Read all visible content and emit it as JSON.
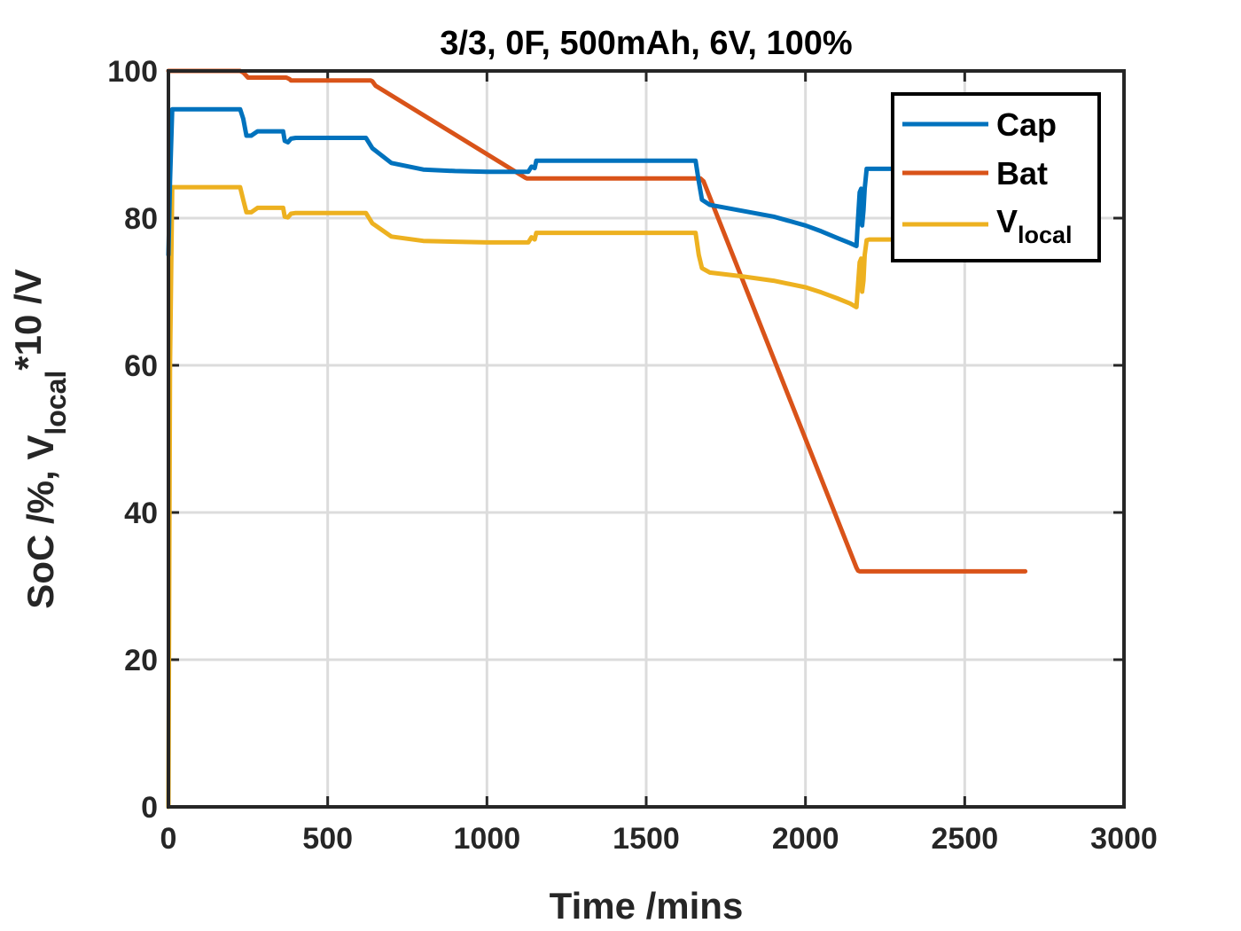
{
  "chart_data": {
    "type": "line",
    "title": "3/3, 0F, 500mAh, 6V, 100%",
    "xlabel": "Time /mins",
    "ylabel": {
      "prefix": "SoC /%, V",
      "subscript": "local",
      "suffix": "*10 /V"
    },
    "xlim": [
      0,
      3000
    ],
    "ylim": [
      0,
      100
    ],
    "xticks": [
      "0",
      "500",
      "1000",
      "1500",
      "2000",
      "2500",
      "3000"
    ],
    "yticks": [
      "0",
      "20",
      "40",
      "60",
      "80",
      "100"
    ],
    "xtick_values": [
      0,
      500,
      1000,
      1500,
      2000,
      2500,
      3000
    ],
    "ytick_values": [
      0,
      20,
      40,
      60,
      80,
      100
    ],
    "grid": true,
    "legend_position": "top-right",
    "series": [
      {
        "name": "Cap",
        "color": "#0072BD",
        "x": [
          0,
          5,
          12,
          15,
          200,
          225,
          235,
          245,
          260,
          280,
          300,
          350,
          360,
          365,
          375,
          385,
          400,
          500,
          600,
          620,
          640,
          700,
          800,
          900,
          1000,
          1100,
          1130,
          1140,
          1150,
          1155,
          1165,
          1300,
          1500,
          1655,
          1665,
          1675,
          1700,
          1800,
          1900,
          2000,
          2050,
          2100,
          2140,
          2160,
          2165,
          2170,
          2175,
          2178,
          2182,
          2186,
          2192,
          2200,
          2300,
          2500,
          2680
        ],
        "y": [
          75,
          85,
          94.8,
          94.8,
          94.8,
          94.8,
          93.5,
          91.2,
          91.2,
          91.8,
          91.8,
          91.8,
          91.8,
          90.5,
          90.3,
          90.8,
          90.9,
          90.9,
          90.9,
          90.9,
          89.5,
          87.5,
          86.6,
          86.4,
          86.3,
          86.3,
          86.3,
          87.0,
          86.8,
          87.8,
          87.8,
          87.8,
          87.8,
          87.8,
          85.0,
          82.5,
          81.8,
          81.0,
          80.2,
          79.0,
          78.2,
          77.3,
          76.6,
          76.2,
          80,
          83.5,
          84,
          79,
          81,
          84,
          86.7,
          86.7,
          86.7,
          86.7,
          86.7
        ]
      },
      {
        "name": "Bat",
        "color": "#D95319",
        "x": [
          0,
          225,
          235,
          250,
          370,
          380,
          385,
          635,
          640,
          650,
          1120,
          1125,
          1135,
          1660,
          1670,
          1680,
          2160,
          2165,
          2170,
          2690
        ],
        "y": [
          100,
          100,
          99.8,
          99.1,
          99.1,
          98.9,
          98.7,
          98.7,
          98.6,
          98.0,
          85.5,
          85.4,
          85.4,
          85.4,
          85.4,
          85.0,
          32.5,
          32.1,
          32.0,
          32.0
        ]
      },
      {
        "name": "V_local",
        "color": "#EDB120",
        "x": [
          0,
          5,
          12,
          15,
          200,
          225,
          235,
          245,
          260,
          280,
          300,
          350,
          360,
          365,
          375,
          385,
          400,
          500,
          600,
          620,
          640,
          700,
          800,
          900,
          1000,
          1100,
          1130,
          1140,
          1150,
          1155,
          1165,
          1300,
          1500,
          1655,
          1665,
          1675,
          1700,
          1800,
          1900,
          2000,
          2050,
          2100,
          2140,
          2160,
          2165,
          2170,
          2175,
          2178,
          2182,
          2186,
          2192,
          2200,
          2300,
          2500,
          2680
        ],
        "y": [
          0,
          60,
          84.2,
          84.2,
          84.2,
          84.2,
          82.5,
          80.8,
          80.8,
          81.4,
          81.4,
          81.4,
          81.4,
          80.2,
          80.1,
          80.6,
          80.7,
          80.7,
          80.7,
          80.7,
          79.3,
          77.5,
          76.9,
          76.8,
          76.7,
          76.7,
          76.7,
          77.4,
          77.1,
          78.0,
          78.0,
          78.0,
          78.0,
          78.0,
          75.0,
          73.2,
          72.6,
          72.1,
          71.5,
          70.6,
          69.9,
          69.1,
          68.4,
          67.9,
          71,
          74,
          74.5,
          70,
          71.5,
          75,
          77.0,
          77.1,
          77.1,
          77.1,
          77.1
        ]
      }
    ],
    "legend": {
      "entries": [
        {
          "label": "Cap"
        },
        {
          "label": "Bat"
        },
        {
          "label": "V",
          "subscript": "local"
        }
      ]
    }
  }
}
